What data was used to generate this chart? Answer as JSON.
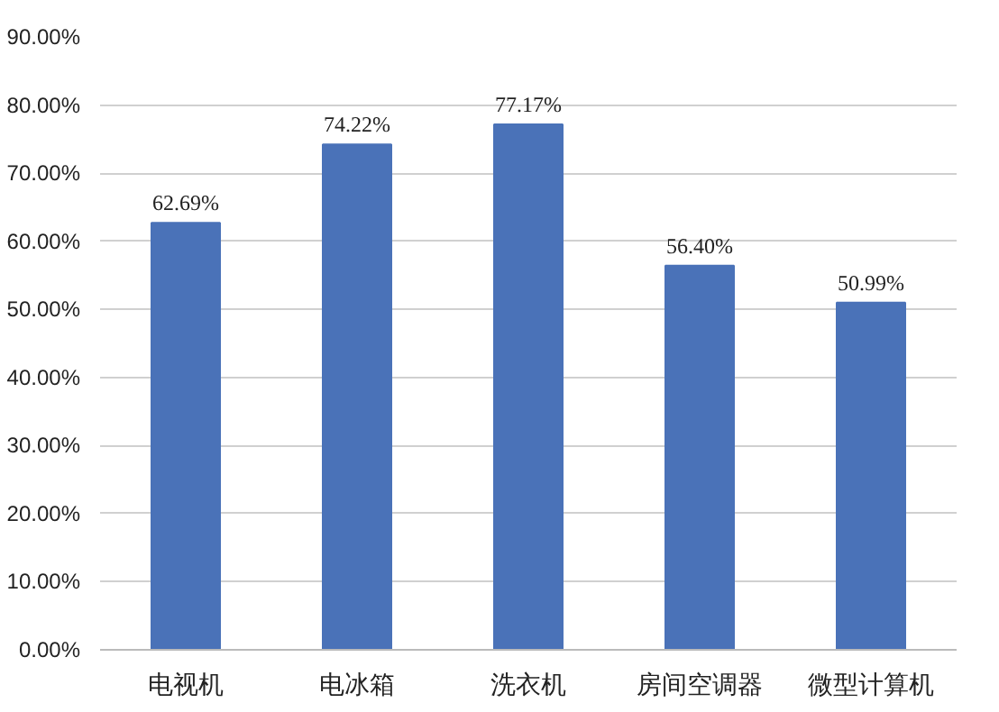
{
  "chart_data": {
    "type": "bar",
    "categories": [
      "电视机",
      "电冰箱",
      "洗衣机",
      "房间空调器",
      "微型计算机"
    ],
    "values": [
      62.69,
      74.22,
      77.17,
      56.4,
      50.99
    ],
    "value_labels": [
      "62.69%",
      "74.22%",
      "77.17%",
      "56.40%",
      "50.99%"
    ],
    "color": "#4a72b8",
    "ylim": [
      0,
      90
    ],
    "yticks": [
      {
        "value": 0,
        "label": "0.00%"
      },
      {
        "value": 10,
        "label": "10.00%"
      },
      {
        "value": 20,
        "label": "20.00%"
      },
      {
        "value": 30,
        "label": "30.00%"
      },
      {
        "value": 40,
        "label": "40.00%"
      },
      {
        "value": 50,
        "label": "50.00%"
      },
      {
        "value": 60,
        "label": "60.00%"
      },
      {
        "value": 70,
        "label": "70.00%"
      },
      {
        "value": 80,
        "label": "80.00%"
      },
      {
        "value": 90,
        "label": "90.00%"
      }
    ],
    "grid": "y"
  }
}
